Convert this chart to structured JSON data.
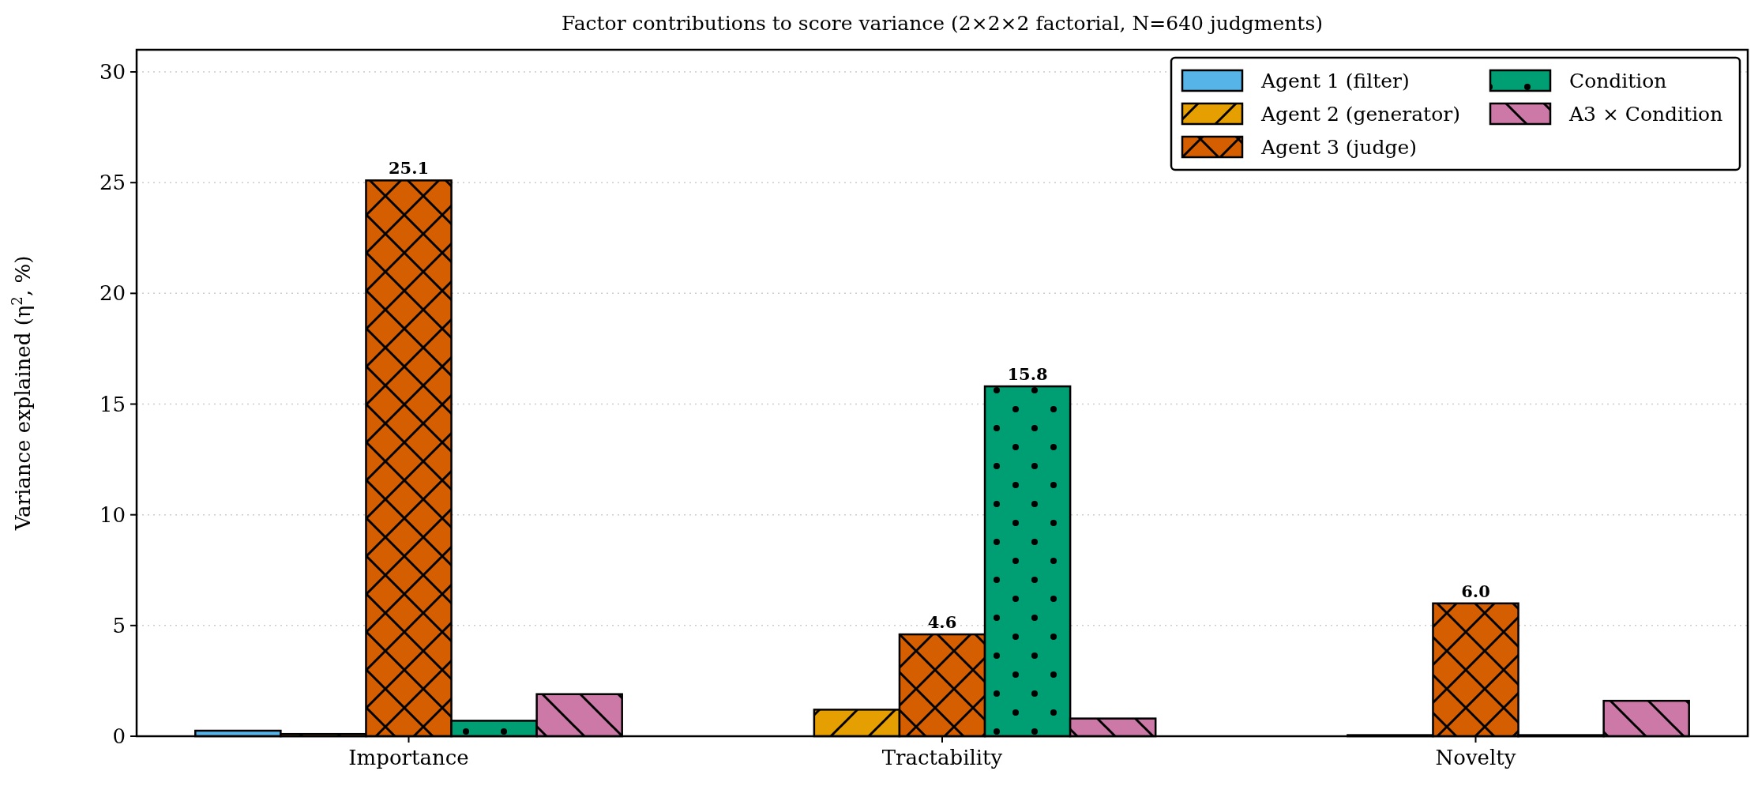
{
  "chart_data": {
    "type": "bar",
    "title": "Factor contributions to score variance (2×2×2 factorial, N=640 judgments)",
    "ylabel": "Variance explained (η$^{2}$, %)",
    "categories": [
      "Importance",
      "Tractability",
      "Novelty"
    ],
    "series": [
      {
        "name": "Agent 1 (filter)",
        "color": "#56b4e9",
        "values": [
          0.25,
          0,
          null
        ]
      },
      {
        "name": "Agent 2 (generator)",
        "color": "#e69f00",
        "values": [
          0.1,
          1.2,
          0.05
        ]
      },
      {
        "name": "Agent 3 (judge)",
        "color": "#d55e00",
        "values": [
          25.1,
          4.6,
          6.0
        ],
        "value_labels": [
          "25.1",
          "4.6",
          "6.0"
        ]
      },
      {
        "name": "Condition",
        "color": "#009e73",
        "values": [
          0.7,
          15.8,
          0.05
        ],
        "value_labels": [
          null,
          "15.8",
          null
        ]
      },
      {
        "name": "A3 × Condition",
        "color": "#cc79a7",
        "values": [
          1.9,
          0.8,
          1.6
        ]
      }
    ],
    "ylim": [
      0,
      31
    ],
    "yticks": [
      0,
      5,
      10,
      15,
      20,
      25,
      30
    ],
    "grid": "y",
    "legend": "top right"
  }
}
